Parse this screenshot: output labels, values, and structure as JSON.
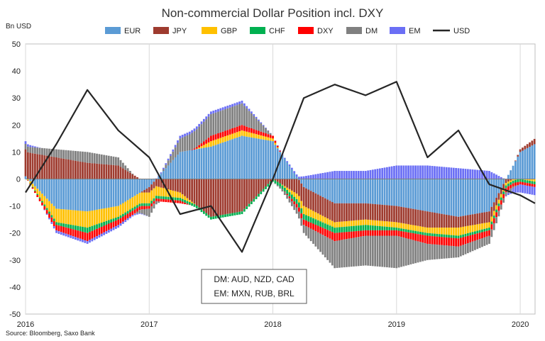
{
  "chart_data": {
    "type": "bar",
    "stacked": true,
    "title": "Non-commercial Dollar Position incl. DXY",
    "ylabel": "Bn USD",
    "ylim": [
      -50,
      50
    ],
    "yticks": [
      -50,
      -40,
      -30,
      -20,
      -10,
      0,
      10,
      20,
      30,
      40,
      50
    ],
    "xlim": [
      2016.0,
      2020.12
    ],
    "xticks": [
      {
        "label": "2016",
        "x": 2016.0
      },
      {
        "label": "2017",
        "x": 2017.0
      },
      {
        "label": "2018",
        "x": 2018.0
      },
      {
        "label": "2019",
        "x": 2019.0
      },
      {
        "label": "2020",
        "x": 2020.0
      }
    ],
    "grid": "vertical",
    "legend_position": "top",
    "x": [
      2016.0,
      2016.25,
      2016.5,
      2016.75,
      2017.0,
      2017.25,
      2017.5,
      2017.75,
      2018.0,
      2018.25,
      2018.5,
      2018.75,
      2019.0,
      2019.25,
      2019.5,
      2019.75,
      2020.0,
      2020.12
    ],
    "series": [
      {
        "name": "EUR",
        "color": "#5b9bd5",
        "kind": "bar",
        "values": [
          1,
          -11,
          -12,
          -10,
          -3,
          10,
          12,
          16,
          14,
          -3,
          -9,
          -9,
          -10,
          -12,
          -14,
          -12,
          10,
          13
        ]
      },
      {
        "name": "JPY",
        "color": "#9e3b2f",
        "kind": "bar",
        "values": [
          10,
          8,
          6,
          5,
          -2,
          -5,
          -14,
          -12,
          0,
          -7,
          -7,
          -6,
          -6,
          -6,
          -4,
          -4,
          1,
          2
        ]
      },
      {
        "name": "GBP",
        "color": "#ffc000",
        "kind": "bar",
        "values": [
          0,
          -5,
          -6,
          -4,
          -4,
          -2,
          2,
          2,
          1,
          -3,
          -2,
          -2,
          -2,
          -2,
          -3,
          -2,
          0,
          -1
        ]
      },
      {
        "name": "CHF",
        "color": "#00b050",
        "kind": "bar",
        "values": [
          0,
          -1,
          -2,
          -1,
          -1,
          -1,
          -1,
          -1,
          -1,
          -2,
          -2,
          -2,
          -1,
          -1,
          -1,
          -1,
          -1,
          -1
        ]
      },
      {
        "name": "DXY",
        "color": "#ff0000",
        "kind": "bar",
        "values": [
          0,
          -2,
          -3,
          -2,
          -1,
          -1,
          2,
          2,
          1,
          -2,
          -3,
          -2,
          -2,
          -3,
          -3,
          -2,
          -1,
          -1
        ]
      },
      {
        "name": "DM",
        "color": "#808080",
        "kind": "bar",
        "values": [
          2,
          3,
          4,
          3,
          -3,
          5,
          8,
          8,
          0,
          -3,
          -10,
          -11,
          -12,
          -6,
          -4,
          -3,
          0,
          0
        ]
      },
      {
        "name": "EM",
        "color": "#6b6ff5",
        "kind": "bar",
        "values": [
          1,
          -1,
          -1,
          -1,
          0,
          1,
          1,
          1,
          0,
          1,
          3,
          3,
          5,
          5,
          4,
          3,
          -3,
          -3
        ]
      },
      {
        "name": "USD",
        "color": "#262626",
        "kind": "line",
        "values": [
          -5,
          13,
          33,
          18,
          8,
          -13,
          -10,
          -27,
          0,
          30,
          35,
          31,
          36,
          8,
          18,
          -2,
          -6,
          -9
        ]
      }
    ],
    "note": [
      "DM: AUD, NZD, CAD",
      "EM: MXN, RUB, BRL"
    ],
    "source": "Source: Bloomberg, Saxo Bank"
  }
}
